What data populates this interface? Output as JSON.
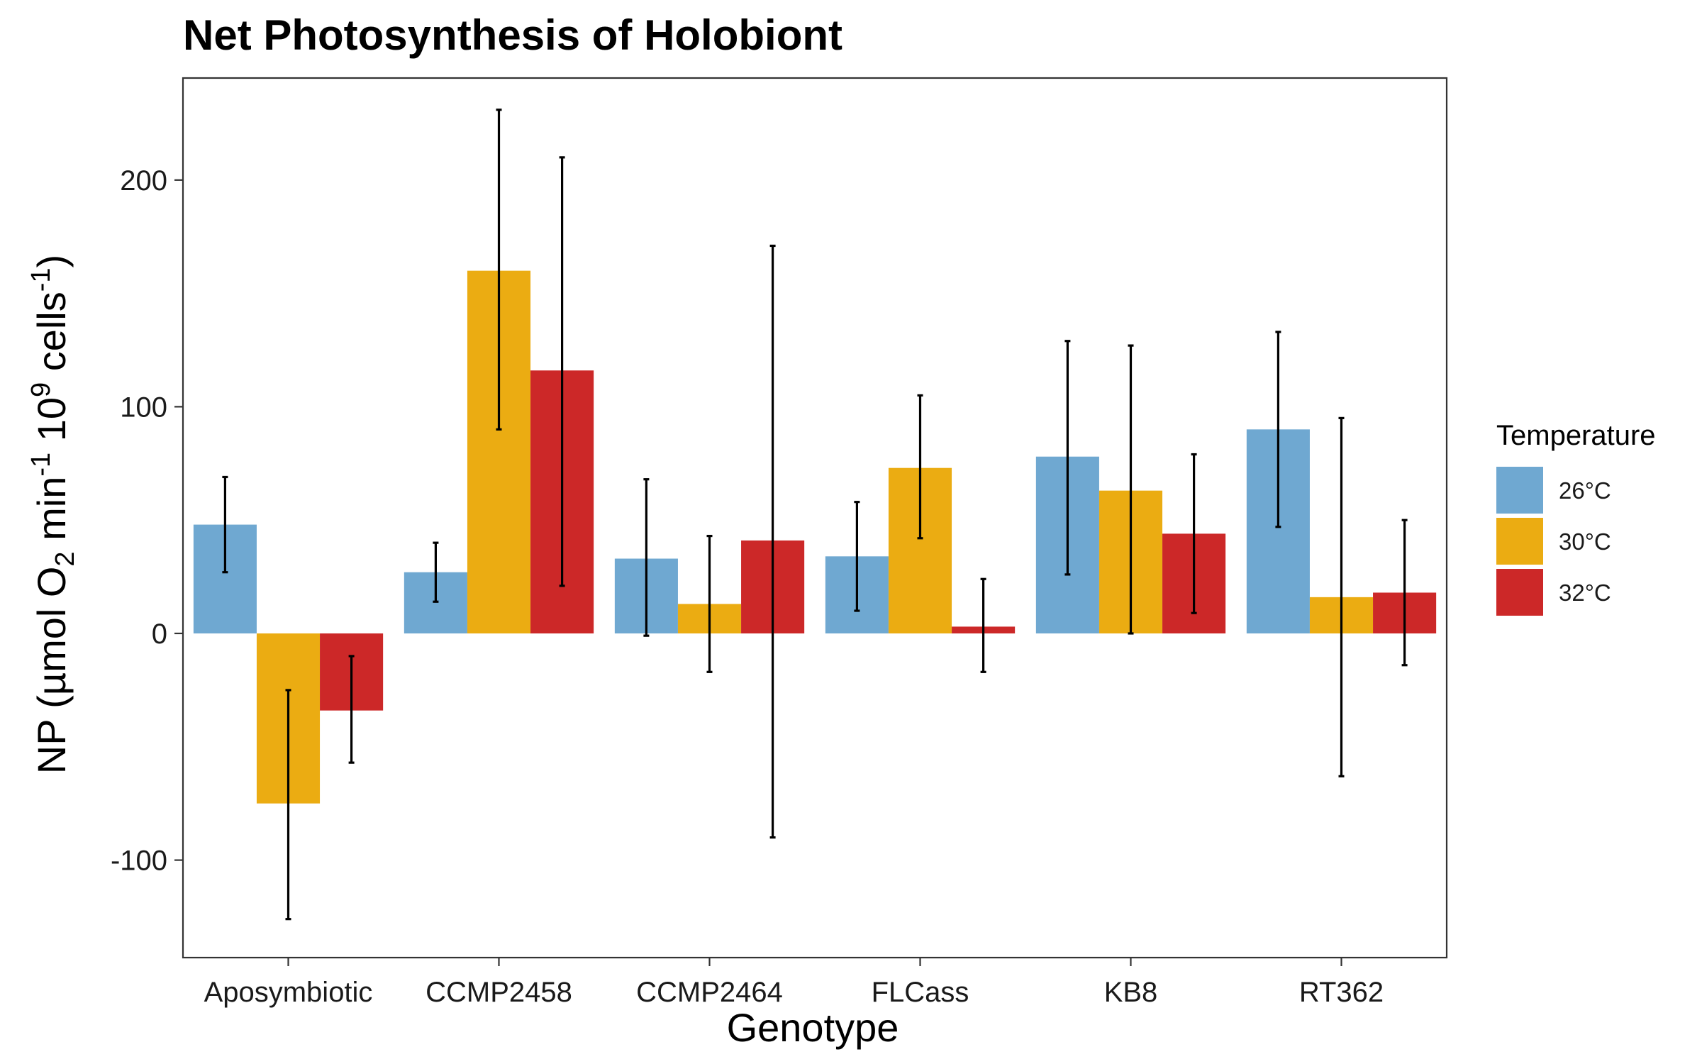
{
  "chart_data": {
    "type": "bar",
    "title": "Net Photosynthesis of Holobiont",
    "xlabel": "Genotype",
    "ylabel": {
      "prefix": "NP (µmol O",
      "sub": "2",
      "mid1": " min",
      "sup1": "-1",
      "mid2": " 10",
      "sup2": "9",
      "mid3": " cells",
      "sup3": "-1",
      "suffix": ")"
    },
    "ylim": [
      -143,
      245
    ],
    "yticks": [
      -100,
      0,
      100,
      200
    ],
    "ytick_labels": [
      "-100",
      "0",
      "100",
      "200"
    ],
    "grid": false,
    "legend_position": "right",
    "legend_title": "Temperature",
    "categories": [
      "Aposymbiotic",
      "CCMP2458",
      "CCMP2464",
      "FLCass",
      "KB8",
      "RT362"
    ],
    "series": [
      {
        "name": "26°C",
        "color": "#6fa8d1",
        "values": [
          48,
          27,
          33,
          34,
          78,
          90
        ],
        "err_low": [
          27,
          14,
          -1,
          10,
          26,
          47
        ],
        "err_high": [
          69,
          40,
          68,
          58,
          129,
          133
        ]
      },
      {
        "name": "30°C",
        "color": "#ebac12",
        "values": [
          -75,
          160,
          13,
          73,
          63,
          16
        ],
        "err_low": [
          -126,
          90,
          -17,
          42,
          0,
          -63
        ],
        "err_high": [
          -25,
          231,
          43,
          105,
          127,
          95
        ]
      },
      {
        "name": "32°C",
        "color": "#cc2828",
        "values": [
          -34,
          116,
          41,
          3,
          44,
          18
        ],
        "err_low": [
          -57,
          21,
          -90,
          -17,
          9,
          -14
        ],
        "err_high": [
          -10,
          210,
          171,
          24,
          79,
          50
        ]
      }
    ]
  }
}
